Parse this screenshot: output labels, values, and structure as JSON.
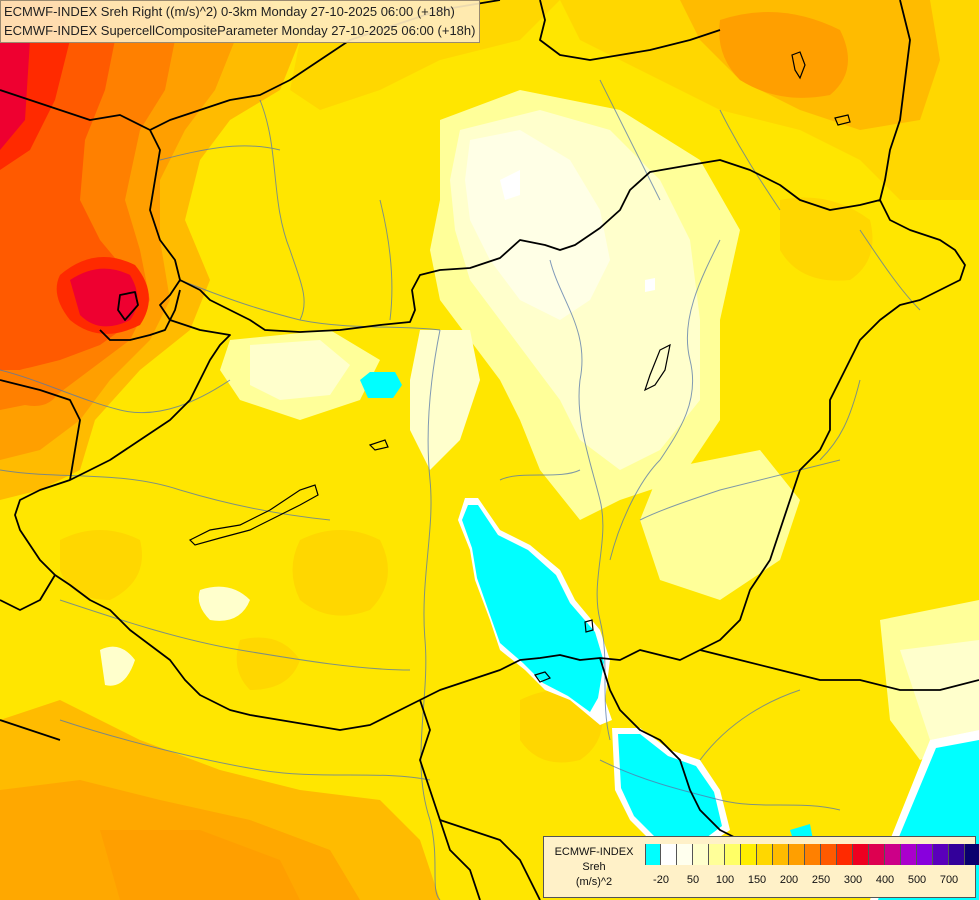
{
  "title": {
    "line1": "ECMWF-INDEX Sreh Right ((m/s)^2) 0-3km Monday 27-10-2025 06:00 (+18h)",
    "line2": "ECMWF-INDEX SupercellCompositeParameter Monday 27-10-2025 06:00 (+18h)"
  },
  "legend": {
    "line1": "ECMWF-INDEX",
    "line2": "Sreh",
    "line3": "(m/s)^2",
    "colors": [
      "#00ffff",
      "#ffffff",
      "#ffffee",
      "#ffffcc",
      "#ffff99",
      "#ffff66",
      "#ffee00",
      "#ffd700",
      "#ffbb00",
      "#ff9f00",
      "#ff8000",
      "#ff5a00",
      "#ff2a00",
      "#ee0020",
      "#dd0050",
      "#cc0088",
      "#aa00cc",
      "#8800dd",
      "#5a00bb",
      "#33009a",
      "#0a006e"
    ],
    "ticks": [
      {
        "label": "-20",
        "index": 1
      },
      {
        "label": "50",
        "index": 3
      },
      {
        "label": "100",
        "index": 5
      },
      {
        "label": "150",
        "index": 7
      },
      {
        "label": "200",
        "index": 9
      },
      {
        "label": "250",
        "index": 11
      },
      {
        "label": "300",
        "index": 13
      },
      {
        "label": "400",
        "index": 15
      },
      {
        "label": "500",
        "index": 17
      },
      {
        "label": "700",
        "index": 19
      }
    ]
  }
}
